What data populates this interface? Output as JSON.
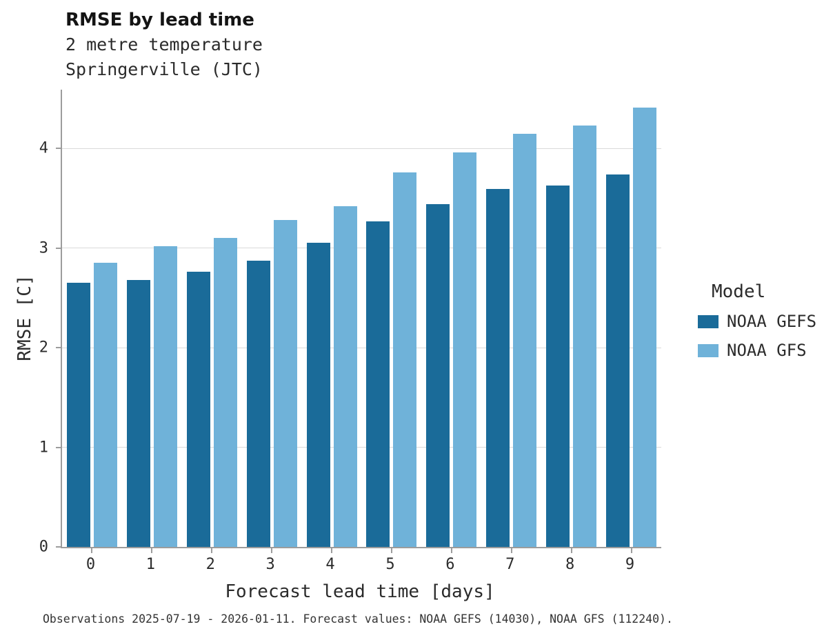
{
  "chart_data": {
    "type": "bar",
    "title": "RMSE by lead time",
    "subtitle_line1": "2 metre temperature",
    "subtitle_line2": "Springerville (JTC)",
    "xlabel": "Forecast lead time [days]",
    "ylabel": "RMSE [C]",
    "categories": [
      "0",
      "1",
      "2",
      "3",
      "4",
      "5",
      "6",
      "7",
      "8",
      "9"
    ],
    "yticks": [
      0,
      1,
      2,
      3,
      4
    ],
    "ylim": [
      0,
      4.59
    ],
    "grid": "horizontal",
    "legend_position": "right",
    "legend_title": "Model",
    "series": [
      {
        "name": "NOAA GEFS",
        "color": "#1a6b99",
        "values": [
          2.65,
          2.68,
          2.76,
          2.87,
          3.05,
          3.27,
          3.44,
          3.59,
          3.63,
          3.74
        ]
      },
      {
        "name": "NOAA GFS",
        "color": "#6fb2d9",
        "values": [
          2.85,
          3.02,
          3.1,
          3.28,
          3.42,
          3.76,
          3.96,
          4.15,
          4.23,
          4.41
        ]
      }
    ],
    "caption": "Observations 2025-07-19 - 2026-01-11. Forecast values: NOAA GEFS (14030), NOAA GFS (112240)."
  }
}
